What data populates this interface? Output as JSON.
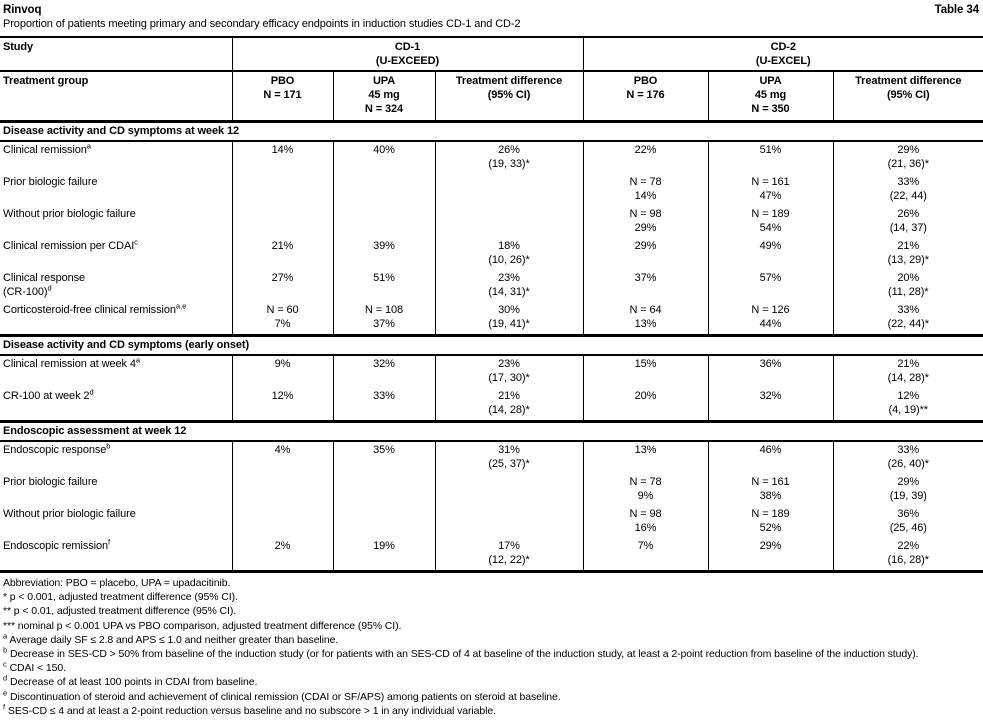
{
  "page": {
    "title": "Rinvoq",
    "table_number": "Table 34",
    "subtitle": "Proportion of patients meeting primary and secondary efficacy endpoints in induction studies CD-1 and CD-2"
  },
  "table": {
    "header": {
      "study_label": "Study",
      "treatment_group_label": "Treatment group",
      "groups": [
        {
          "name": "CD-1",
          "subtitle": "(U-EXCEED)",
          "columns": [
            [
              "PBO",
              "N = 171"
            ],
            [
              "UPA",
              "45 mg",
              "N = 324"
            ],
            [
              "Treatment difference",
              "(95% CI)"
            ]
          ]
        },
        {
          "name": "CD-2",
          "subtitle": "(U-EXCEL)",
          "columns": [
            [
              "PBO",
              "N = 176"
            ],
            [
              "UPA",
              "45 mg",
              "N = 350"
            ],
            [
              "Treatment difference",
              "(95% CI)"
            ]
          ]
        }
      ]
    },
    "sections": [
      {
        "title": "Disease activity and CD symptoms at week 12",
        "rows": [
          {
            "label_lines": [
              {
                "text": "Clinical remission",
                "sup": "a"
              }
            ],
            "cells": [
              [
                "14%"
              ],
              [
                "40%"
              ],
              [
                "26%",
                "(19, 33)*"
              ],
              [
                "22%"
              ],
              [
                "51%"
              ],
              [
                "29%",
                "(21, 36)*"
              ]
            ]
          },
          {
            "label_lines": [
              {
                "text": "Prior biologic failure",
                "sup": ""
              }
            ],
            "cells": [
              [],
              [],
              [],
              [
                "N = 78",
                "14%"
              ],
              [
                "N = 161",
                "47%"
              ],
              [
                "33%",
                "(22, 44)"
              ]
            ]
          },
          {
            "label_lines": [
              {
                "text": "Without prior biologic failure",
                "sup": ""
              }
            ],
            "cells": [
              [],
              [],
              [],
              [
                "N = 98",
                "29%"
              ],
              [
                "N = 189",
                "54%"
              ],
              [
                "26%",
                "(14, 37)"
              ]
            ]
          },
          {
            "label_lines": [
              {
                "text": "Clinical remission per CDAI",
                "sup": "c"
              }
            ],
            "cells": [
              [
                "21%"
              ],
              [
                "39%"
              ],
              [
                "18%",
                "(10, 26)*"
              ],
              [
                "29%"
              ],
              [
                "49%"
              ],
              [
                "21%",
                "(13, 29)*"
              ]
            ]
          },
          {
            "label_lines": [
              {
                "text": "Clinical response",
                "sup": ""
              },
              {
                "text": "(CR-100)",
                "sup": "d"
              }
            ],
            "cells": [
              [
                "27%"
              ],
              [
                "51%"
              ],
              [
                "23%",
                "(14, 31)*"
              ],
              [
                "37%"
              ],
              [
                "57%"
              ],
              [
                "20%",
                "(11, 28)*"
              ]
            ]
          },
          {
            "label_lines": [
              {
                "text": "Corticosteroid-free clinical remission",
                "sup": "a,e"
              }
            ],
            "cells": [
              [
                "N = 60",
                "7%"
              ],
              [
                "N = 108",
                "37%"
              ],
              [
                "30%",
                "(19, 41)*"
              ],
              [
                "N = 64",
                "13%"
              ],
              [
                "N = 126",
                "44%"
              ],
              [
                "33%",
                "(22, 44)*"
              ]
            ]
          }
        ]
      },
      {
        "title": "Disease activity and CD symptoms (early onset)",
        "rows": [
          {
            "label_lines": [
              {
                "text": "Clinical remission at week 4",
                "sup": "a"
              }
            ],
            "cells": [
              [
                "9%"
              ],
              [
                "32%"
              ],
              [
                "23%",
                "(17, 30)*"
              ],
              [
                "15%"
              ],
              [
                "36%"
              ],
              [
                "21%",
                "(14, 28)*"
              ]
            ]
          },
          {
            "label_lines": [
              {
                "text": "CR-100 at week 2",
                "sup": "d"
              }
            ],
            "cells": [
              [
                "12%"
              ],
              [
                "33%"
              ],
              [
                "21%",
                "(14, 28)*"
              ],
              [
                "20%"
              ],
              [
                "32%"
              ],
              [
                "12%",
                "(4, 19)**"
              ]
            ]
          }
        ]
      },
      {
        "title": "Endoscopic assessment at week 12",
        "rows": [
          {
            "label_lines": [
              {
                "text": "Endoscopic response",
                "sup": "b"
              }
            ],
            "cells": [
              [
                "4%"
              ],
              [
                "35%"
              ],
              [
                "31%",
                "(25, 37)*"
              ],
              [
                "13%"
              ],
              [
                "46%"
              ],
              [
                "33%",
                "(26, 40)*"
              ]
            ]
          },
          {
            "label_lines": [
              {
                "text": "Prior biologic failure",
                "sup": ""
              }
            ],
            "cells": [
              [],
              [],
              [],
              [
                "N = 78",
                "9%"
              ],
              [
                "N = 161",
                "38%"
              ],
              [
                "29%",
                "(19, 39)"
              ]
            ]
          },
          {
            "label_lines": [
              {
                "text": "Without prior biologic failure",
                "sup": ""
              }
            ],
            "cells": [
              [],
              [],
              [],
              [
                "N = 98",
                "16%"
              ],
              [
                "N = 189",
                "52%"
              ],
              [
                "36%",
                "(25, 46)"
              ]
            ]
          },
          {
            "label_lines": [
              {
                "text": "Endoscopic remission",
                "sup": "f"
              }
            ],
            "cells": [
              [
                "2%"
              ],
              [
                "19%"
              ],
              [
                "17%",
                "(12, 22)*"
              ],
              [
                "7%"
              ],
              [
                "29%"
              ],
              [
                "22%",
                "(16, 28)*"
              ]
            ]
          }
        ]
      }
    ]
  },
  "footnotes": [
    {
      "marker": "",
      "superscript": false,
      "text": "Abbreviation: PBO = placebo, UPA = upadacitinib."
    },
    {
      "marker": "*",
      "superscript": false,
      "text": "p < 0.001, adjusted treatment difference (95% CI)."
    },
    {
      "marker": "**",
      "superscript": false,
      "text": "p < 0.01, adjusted treatment difference (95% CI)."
    },
    {
      "marker": "***",
      "superscript": false,
      "text": "nominal p < 0.001 UPA vs PBO comparison, adjusted treatment difference (95% CI)."
    },
    {
      "marker": "a",
      "superscript": true,
      "text": "Average daily SF ≤ 2.8 and APS ≤ 1.0 and neither greater than baseline."
    },
    {
      "marker": "b",
      "superscript": true,
      "text": "Decrease in SES-CD > 50% from baseline of the induction study (or for patients with an SES-CD of 4 at baseline of the induction study, at least a 2-point reduction from baseline of the induction study)."
    },
    {
      "marker": "c",
      "superscript": true,
      "text": "CDAI < 150."
    },
    {
      "marker": "d",
      "superscript": true,
      "text": "Decrease of at least 100 points in CDAI from baseline."
    },
    {
      "marker": "e",
      "superscript": true,
      "text": "Discontinuation of steroid and achievement of clinical remission (CDAI or SF/APS) among patients on steroid at baseline."
    },
    {
      "marker": "f",
      "superscript": true,
      "text": "SES-CD ≤ 4 and at least a 2-point reduction versus baseline and no subscore > 1 in any individual variable."
    }
  ],
  "colors": {
    "text": "#000000",
    "background": "#ffffff",
    "border": "#000000"
  }
}
